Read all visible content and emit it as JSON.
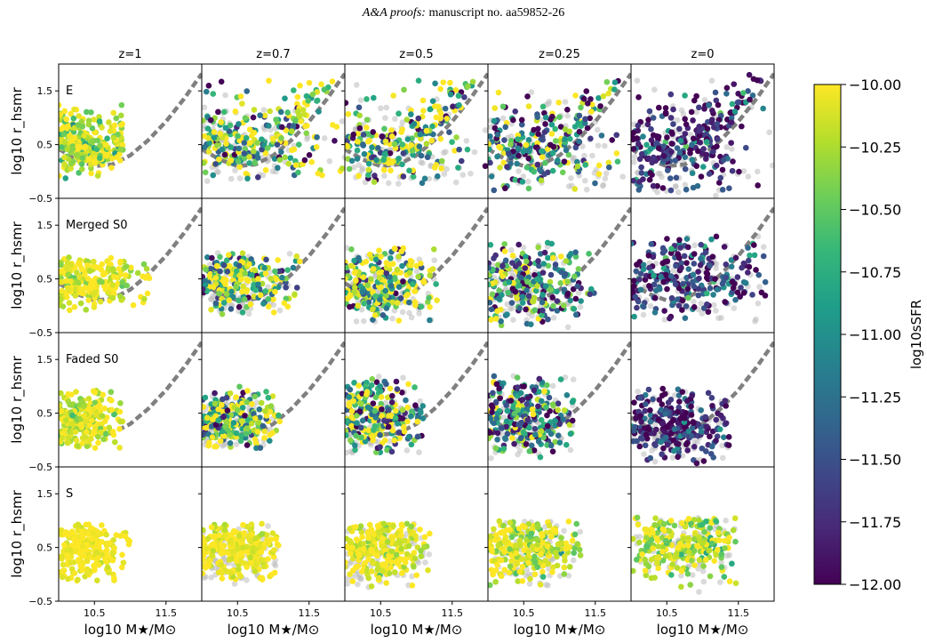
{
  "header": {
    "journal": "A&A proofs:",
    "manuscript": "manuscript no. aa59852-26"
  },
  "chart_data": {
    "type": "scatter",
    "columns": [
      "z=1",
      "z=0.7",
      "z=0.5",
      "z=0.25",
      "z=0"
    ],
    "rows": [
      "E",
      "Merged S0",
      "Faded S0",
      "S"
    ],
    "xlabel": "log10 M★/M⊙",
    "ylabel": "log10 r_hsmr",
    "xlim": [
      10.0,
      12.0
    ],
    "ylim": [
      -0.5,
      2.0
    ],
    "xticks": [
      10.5,
      11.5
    ],
    "xtick_labels": [
      "10.5",
      "11.5"
    ],
    "yticks": [
      -0.5,
      0.5,
      1.5
    ],
    "ytick_labels": [
      "−0.5",
      "0.5",
      "1.5"
    ],
    "colorbar": {
      "label": "log10sSFR",
      "range": [
        -12.0,
        -10.0
      ],
      "ticks": [
        -10.0,
        -10.25,
        -10.5,
        -10.75,
        -11.0,
        -11.25,
        -11.5,
        -11.75,
        -12.0
      ],
      "tick_labels": [
        "−10.00",
        "−10.25",
        "−10.50",
        "−10.75",
        "−11.00",
        "−11.25",
        "−11.50",
        "−11.75",
        "−12.00"
      ],
      "colormap": "viridis",
      "stops": [
        "#440154",
        "#482878",
        "#3e4989",
        "#31688e",
        "#26828e",
        "#1f9e89",
        "#35b779",
        "#6ece58",
        "#b5de2b",
        "#fde725"
      ]
    },
    "background_points_color": "#bbbbbb",
    "reference_curve": {
      "style": "dashed",
      "color": "#808080",
      "points": [
        [
          10.0,
          0.42
        ],
        [
          10.25,
          0.22
        ],
        [
          10.5,
          0.1
        ],
        [
          10.75,
          0.13
        ],
        [
          11.0,
          0.3
        ],
        [
          11.25,
          0.58
        ],
        [
          11.5,
          0.93
        ],
        [
          11.75,
          1.35
        ],
        [
          12.0,
          1.82
        ]
      ]
    },
    "panels": [
      {
        "row": "E",
        "col": "z=1",
        "x": [
          10.0,
          10.9
        ],
        "y": [
          -0.2,
          1.4
        ],
        "xc": 10.3,
        "yc": 0.5,
        "ssfr_mean": -10.15,
        "ssfr_spread": 0.3,
        "grey": false,
        "tail": true
      },
      {
        "row": "E",
        "col": "z=0.7",
        "x": [
          10.0,
          12.0
        ],
        "y": [
          -0.2,
          1.7
        ],
        "xc": 10.5,
        "yc": 0.5,
        "ssfr_mean": -10.5,
        "ssfr_spread": 0.8,
        "grey": true,
        "tail": true
      },
      {
        "row": "E",
        "col": "z=0.5",
        "x": [
          10.0,
          12.0
        ],
        "y": [
          -0.25,
          1.7
        ],
        "xc": 10.6,
        "yc": 0.4,
        "ssfr_mean": -10.7,
        "ssfr_spread": 0.9,
        "grey": true,
        "tail": true
      },
      {
        "row": "E",
        "col": "z=0.25",
        "x": [
          10.0,
          12.0
        ],
        "y": [
          -0.35,
          1.7
        ],
        "xc": 10.6,
        "yc": 0.35,
        "ssfr_mean": -11.0,
        "ssfr_spread": 0.9,
        "grey": true,
        "tail": true
      },
      {
        "row": "E",
        "col": "z=0",
        "x": [
          10.0,
          12.0
        ],
        "y": [
          -0.45,
          1.8
        ],
        "xc": 10.6,
        "yc": 0.3,
        "ssfr_mean": -11.75,
        "ssfr_spread": 0.5,
        "grey": true,
        "tail": true
      },
      {
        "row": "Merged S0",
        "col": "z=1",
        "x": [
          10.0,
          11.3
        ],
        "y": [
          -0.1,
          0.9
        ],
        "xc": 10.3,
        "yc": 0.45,
        "ssfr_mean": -10.05,
        "ssfr_spread": 0.2,
        "grey": false,
        "tail": false
      },
      {
        "row": "Merged S0",
        "col": "z=0.7",
        "x": [
          10.0,
          11.4
        ],
        "y": [
          -0.2,
          1.0
        ],
        "xc": 10.4,
        "yc": 0.45,
        "ssfr_mean": -10.4,
        "ssfr_spread": 0.8,
        "grey": true,
        "tail": false
      },
      {
        "row": "Merged S0",
        "col": "z=0.5",
        "x": [
          10.0,
          11.3
        ],
        "y": [
          -0.3,
          1.1
        ],
        "xc": 10.5,
        "yc": 0.4,
        "ssfr_mean": -10.5,
        "ssfr_spread": 0.8,
        "grey": true,
        "tail": false
      },
      {
        "row": "Merged S0",
        "col": "z=0.25",
        "x": [
          10.0,
          11.5
        ],
        "y": [
          -0.4,
          1.2
        ],
        "xc": 10.5,
        "yc": 0.4,
        "ssfr_mean": -10.9,
        "ssfr_spread": 0.9,
        "grey": true,
        "tail": false
      },
      {
        "row": "Merged S0",
        "col": "z=0",
        "x": [
          10.0,
          11.9
        ],
        "y": [
          -0.3,
          1.3
        ],
        "xc": 10.6,
        "yc": 0.55,
        "ssfr_mean": -11.7,
        "ssfr_spread": 0.5,
        "grey": true,
        "tail": false
      },
      {
        "row": "Faded S0",
        "col": "z=1",
        "x": [
          10.0,
          10.9
        ],
        "y": [
          -0.15,
          1.0
        ],
        "xc": 10.3,
        "yc": 0.4,
        "ssfr_mean": -10.1,
        "ssfr_spread": 0.2,
        "grey": false,
        "tail": false
      },
      {
        "row": "Faded S0",
        "col": "z=0.7",
        "x": [
          10.0,
          11.1
        ],
        "y": [
          -0.15,
          1.0
        ],
        "xc": 10.35,
        "yc": 0.4,
        "ssfr_mean": -10.5,
        "ssfr_spread": 0.8,
        "grey": true,
        "tail": false
      },
      {
        "row": "Faded S0",
        "col": "z=0.5",
        "x": [
          10.0,
          11.1
        ],
        "y": [
          -0.25,
          1.2
        ],
        "xc": 10.4,
        "yc": 0.45,
        "ssfr_mean": -10.7,
        "ssfr_spread": 0.9,
        "grey": true,
        "tail": false
      },
      {
        "row": "Faded S0",
        "col": "z=0.25",
        "x": [
          10.0,
          11.2
        ],
        "y": [
          -0.35,
          1.2
        ],
        "xc": 10.45,
        "yc": 0.45,
        "ssfr_mean": -11.1,
        "ssfr_spread": 0.8,
        "grey": true,
        "tail": false
      },
      {
        "row": "Faded S0",
        "col": "z=0",
        "x": [
          10.0,
          11.4
        ],
        "y": [
          -0.45,
          1.0
        ],
        "xc": 10.5,
        "yc": 0.3,
        "ssfr_mean": -11.8,
        "ssfr_spread": 0.4,
        "grey": true,
        "tail": false
      },
      {
        "row": "S",
        "col": "z=1",
        "x": [
          10.0,
          11.0
        ],
        "y": [
          -0.2,
          0.95
        ],
        "xc": 10.3,
        "yc": 0.45,
        "ssfr_mean": -10.02,
        "ssfr_spread": 0.08,
        "grey": false,
        "tail": false
      },
      {
        "row": "S",
        "col": "z=0.7",
        "x": [
          10.0,
          11.1
        ],
        "y": [
          -0.2,
          0.95
        ],
        "xc": 10.4,
        "yc": 0.45,
        "ssfr_mean": -10.03,
        "ssfr_spread": 0.1,
        "grey": true,
        "tail": false
      },
      {
        "row": "S",
        "col": "z=0.5",
        "x": [
          10.0,
          11.2
        ],
        "y": [
          -0.25,
          0.95
        ],
        "xc": 10.4,
        "yc": 0.45,
        "ssfr_mean": -10.05,
        "ssfr_spread": 0.15,
        "grey": true,
        "tail": false
      },
      {
        "row": "S",
        "col": "z=0.25",
        "x": [
          10.0,
          11.3
        ],
        "y": [
          -0.3,
          1.0
        ],
        "xc": 10.5,
        "yc": 0.5,
        "ssfr_mean": -10.15,
        "ssfr_spread": 0.25,
        "grey": true,
        "tail": false
      },
      {
        "row": "S",
        "col": "z=0",
        "x": [
          10.0,
          11.5
        ],
        "y": [
          -0.35,
          1.1
        ],
        "xc": 10.6,
        "yc": 0.6,
        "ssfr_mean": -10.25,
        "ssfr_spread": 0.3,
        "grey": true,
        "tail": false
      }
    ]
  }
}
